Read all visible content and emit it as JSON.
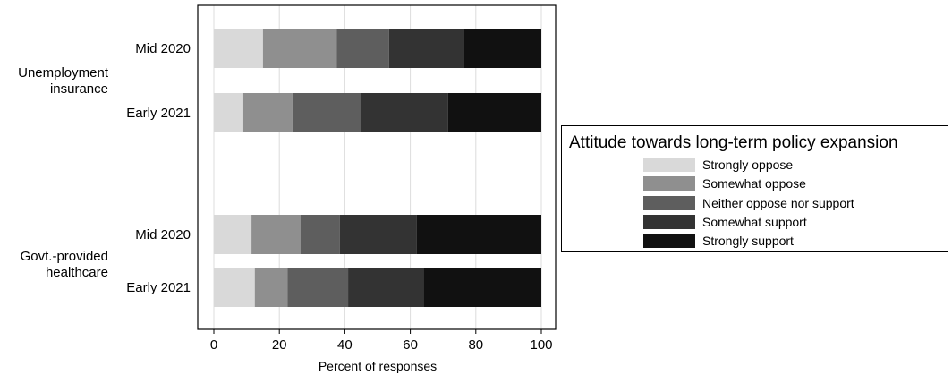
{
  "chart_data": {
    "type": "bar",
    "orientation": "horizontal",
    "stacked": true,
    "xlabel": "Percent of responses",
    "xlim": [
      0,
      100
    ],
    "xticks": [
      0,
      20,
      40,
      60,
      80,
      100
    ],
    "grid": true,
    "groups": [
      {
        "label": "Unemployment\ninsurance",
        "bars": [
          {
            "label": "Mid 2020",
            "values": [
              15,
              22.5,
              16,
              23,
              23.5
            ]
          },
          {
            "label": "Early 2021",
            "values": [
              9,
              15,
              21,
              26.5,
              28.5
            ]
          }
        ]
      },
      {
        "label": "Govt.-provided\nhealthcare",
        "bars": [
          {
            "label": "Mid 2020",
            "values": [
              11.5,
              15,
              12,
              23.5,
              38
            ]
          },
          {
            "label": "Early 2021",
            "values": [
              12.5,
              10,
              18.5,
              23,
              36
            ]
          }
        ]
      }
    ],
    "legend": {
      "title": "Attitude towards long-term policy expansion",
      "position": "right",
      "entries": [
        "Strongly oppose",
        "Somewhat oppose",
        "Neither oppose nor support",
        "Somewhat support",
        "Strongly support"
      ]
    },
    "colors": [
      "#d9d9d9",
      "#8f8f8f",
      "#5e5e5e",
      "#333333",
      "#111111"
    ]
  }
}
